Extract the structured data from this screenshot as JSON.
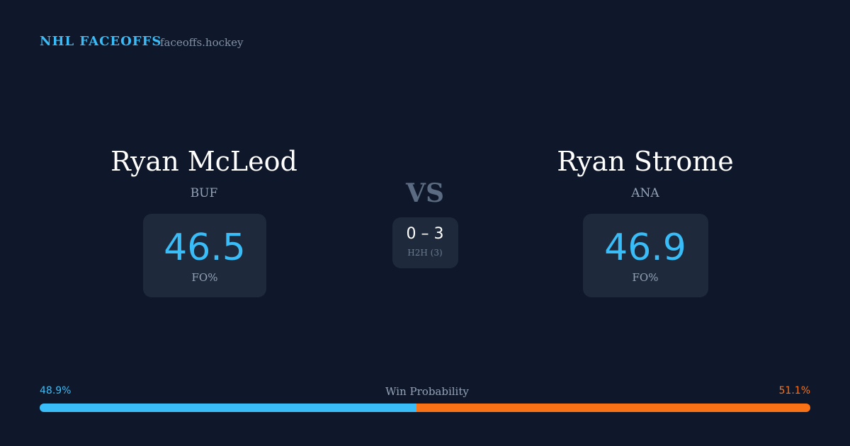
{
  "header": {
    "title": "NHL FACEOFFS",
    "site": "faceoffs.hockey"
  },
  "players": [
    {
      "name": "Ryan McLeod",
      "team": "BUF",
      "stat": 46.5,
      "stat_label": "FO%"
    },
    {
      "name": "Ryan Strome",
      "team": "ANA",
      "stat": 46.9,
      "stat_label": "FO%"
    }
  ],
  "versus": "VS",
  "head_to_head": {
    "score": "0 – 3",
    "label": "H2H (3)"
  },
  "win_probability": {
    "title": "Win Probability",
    "left": {
      "value": 48.9,
      "label": "48.9%",
      "color": "#38bdf8"
    },
    "right": {
      "value": 51.1,
      "label": "51.1%",
      "color": "#f97316"
    }
  }
}
